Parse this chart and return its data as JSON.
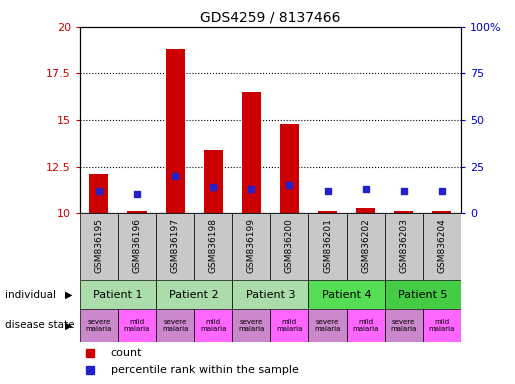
{
  "title": "GDS4259 / 8137466",
  "samples": [
    "GSM836195",
    "GSM836196",
    "GSM836197",
    "GSM836198",
    "GSM836199",
    "GSM836200",
    "GSM836201",
    "GSM836202",
    "GSM836203",
    "GSM836204"
  ],
  "count_values": [
    12.1,
    10.1,
    18.8,
    13.4,
    16.5,
    14.8,
    10.1,
    10.3,
    10.1,
    10.1
  ],
  "count_base": 10.0,
  "percentile_values": [
    11.2,
    11.0,
    12.0,
    11.4,
    11.3,
    11.5,
    11.2,
    11.3,
    11.2,
    11.2
  ],
  "ylim_left": [
    10,
    20
  ],
  "ylim_right": [
    0,
    100
  ],
  "yticks_left": [
    10,
    12.5,
    15,
    17.5,
    20
  ],
  "yticks_right": [
    0,
    25,
    50,
    75,
    100
  ],
  "ytick_labels_left": [
    "10",
    "12.5",
    "15",
    "17.5",
    "20"
  ],
  "ytick_labels_right": [
    "0",
    "25",
    "50",
    "75",
    "100%"
  ],
  "patients": [
    {
      "label": "Patient 1",
      "cols": [
        0,
        1
      ],
      "color": "#aaddaa"
    },
    {
      "label": "Patient 2",
      "cols": [
        2,
        3
      ],
      "color": "#aaddaa"
    },
    {
      "label": "Patient 3",
      "cols": [
        4,
        5
      ],
      "color": "#aaddaa"
    },
    {
      "label": "Patient 4",
      "cols": [
        6,
        7
      ],
      "color": "#55dd55"
    },
    {
      "label": "Patient 5",
      "cols": [
        8,
        9
      ],
      "color": "#44cc44"
    }
  ],
  "disease_states": [
    {
      "label": "severe\nmalaria",
      "col": 0,
      "color": "#cc88cc"
    },
    {
      "label": "mild\nmalaria",
      "col": 1,
      "color": "#ff66ff"
    },
    {
      "label": "severe\nmalaria",
      "col": 2,
      "color": "#cc88cc"
    },
    {
      "label": "mild\nmalaria",
      "col": 3,
      "color": "#ff66ff"
    },
    {
      "label": "severe\nmalaria",
      "col": 4,
      "color": "#cc88cc"
    },
    {
      "label": "mild\nmalaria",
      "col": 5,
      "color": "#ff66ff"
    },
    {
      "label": "severe\nmalaria",
      "col": 6,
      "color": "#cc88cc"
    },
    {
      "label": "mild\nmalaria",
      "col": 7,
      "color": "#ff66ff"
    },
    {
      "label": "severe\nmalaria",
      "col": 8,
      "color": "#cc88cc"
    },
    {
      "label": "mild\nmalaria",
      "col": 9,
      "color": "#ff66ff"
    }
  ],
  "bar_color": "#cc0000",
  "dot_color": "#2222cc",
  "bg_color": "#ffffff",
  "axis_label_color_left": "#cc0000",
  "axis_label_color_right": "#0000cc",
  "grid_color": "#000000",
  "sample_bg_color": "#c8c8c8",
  "legend_count_color": "#cc0000",
  "legend_pct_color": "#2222cc",
  "left_label_individual": "individual",
  "left_label_disease": "disease state",
  "legend_count_label": "count",
  "legend_pct_label": "percentile rank within the sample"
}
